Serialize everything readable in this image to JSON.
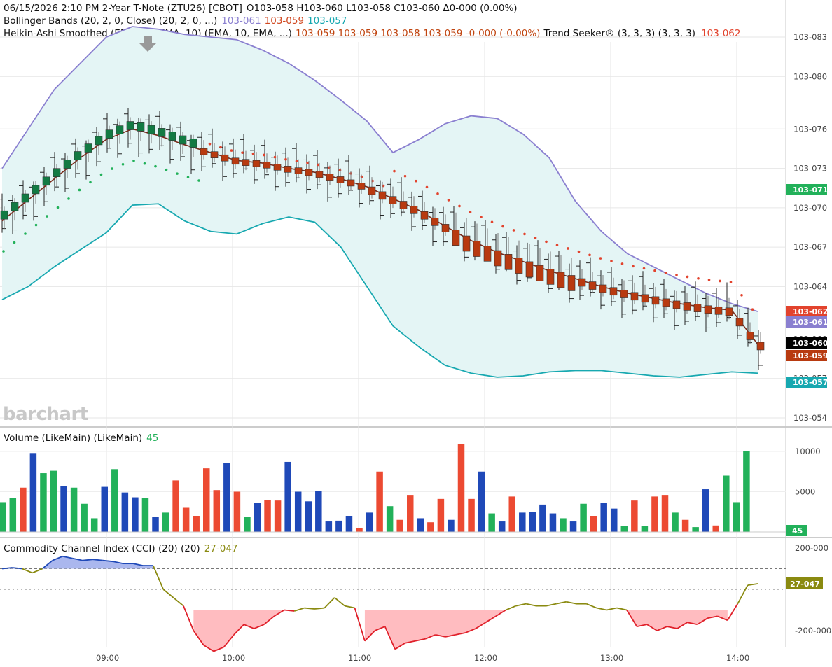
{
  "header": {
    "line1": "06/15/2026  2:10 PM 2-Year T-Note (ZTU26) [CBOT]",
    "ohlc": "O103-058 H103-060 L103-058 C103-060 Δ0-000 (0.00%)",
    "bb_label": "Bollinger Bands (20, 2, 0, Close)  (20, 2, 0, ...)",
    "bb_vals": [
      "103-061",
      "103-059",
      "103-057"
    ],
    "ha_label": "Heikin-Ashi Smoothed (EMA, 10, EMA, 10)  (EMA, 10, EMA, ...)",
    "ha_vals": "103-059 103-059 103-058 103-059 -0-000 (-0.00%)",
    "ts_label": "Trend Seeker® (3, 3, 3)  (3, 3, 3)",
    "ts_val": "103-062"
  },
  "colors": {
    "bb_upper": "#8a7fd0",
    "bb_middle": "#d04820",
    "bb_lower": "#17a8b0",
    "band_fill": "#e4f5f5",
    "ha_up": "#137a43",
    "ha_down": "#b83a10",
    "trend_up": "#22b15a",
    "trend_down": "#e2432d",
    "ema_line": "#7a2a1a",
    "vol_green": "#22b15a",
    "vol_red": "#ec4a32",
    "vol_blue": "#1f49b8",
    "cci_line_pos": "#1f49b8",
    "cci_line_mid": "#8a8a10",
    "cci_line_neg": "#e0202a",
    "cci_fill_pos": "#aab7ee",
    "cci_fill_neg": "#ffbcc0"
  },
  "price_axis": {
    "ticks": [
      "103-054",
      "103-057",
      "103-060",
      "103-064",
      "103-067",
      "103-070",
      "103-073",
      "103-076",
      "103-080",
      "103-083"
    ],
    "tags": [
      {
        "label": "103-071",
        "color": "#22b15a"
      },
      {
        "label": "103-062",
        "color": "#e2432d"
      },
      {
        "label": "103-061",
        "color": "#8a7fd0"
      },
      {
        "label": "103-060",
        "color": "#000000"
      },
      {
        "label": "103-059",
        "color": "#b83a10"
      },
      {
        "label": "103-057",
        "color": "#17a8b0"
      }
    ]
  },
  "time_axis": {
    "ticks": [
      "09:00",
      "10:00",
      "11:00",
      "12:00",
      "13:00",
      "14:00"
    ]
  },
  "volume": {
    "label": "Volume (LikeMain)  (LikeMain)",
    "value": "45",
    "ticks": [
      "10000",
      "5000"
    ],
    "tag": "45"
  },
  "cci": {
    "label": "Commodity Channel Index (CCI) (20)  (20)",
    "value": "27-047",
    "ticks": [
      "200-000",
      "-200-000"
    ],
    "tag": "27-047"
  },
  "logo": "barchart",
  "chart_data": [
    {
      "type": "line",
      "title": "2-Year T-Note (ZTU26) [CBOT]",
      "x_range": [
        "08:30",
        "14:10"
      ],
      "y_unit": "32nds above 103",
      "ylim": [
        0.4,
        3.1
      ],
      "y_tick_values": [
        0.54,
        0.57,
        0.6,
        0.64,
        0.67,
        0.7,
        0.73,
        0.76,
        0.8,
        0.83
      ],
      "series": [
        {
          "name": "Bollinger Upper",
          "values": [
            0.73,
            0.76,
            0.79,
            0.81,
            0.83,
            0.838,
            0.836,
            0.832,
            0.83,
            0.828,
            0.82,
            0.81,
            0.797,
            0.782,
            0.766,
            0.742,
            0.752,
            0.764,
            0.77,
            0.768,
            0.756,
            0.738,
            0.705,
            0.682,
            0.665,
            0.655,
            0.645,
            0.635,
            0.627,
            0.621
          ]
        },
        {
          "name": "Bollinger Lower",
          "values": [
            0.63,
            0.64,
            0.655,
            0.668,
            0.681,
            0.702,
            0.703,
            0.69,
            0.682,
            0.68,
            0.688,
            0.693,
            0.689,
            0.67,
            0.64,
            0.61,
            0.594,
            0.58,
            0.574,
            0.571,
            0.572,
            0.575,
            0.576,
            0.576,
            0.574,
            0.572,
            0.571,
            0.573,
            0.575,
            0.574
          ]
        },
        {
          "name": "Heikin-Ashi Close",
          "values": [
            0.69,
            0.706,
            0.722,
            0.738,
            0.752,
            0.76,
            0.755,
            0.748,
            0.742,
            0.736,
            0.734,
            0.73,
            0.727,
            0.722,
            0.716,
            0.707,
            0.698,
            0.686,
            0.675,
            0.666,
            0.659,
            0.652,
            0.646,
            0.64,
            0.635,
            0.631,
            0.627,
            0.624,
            0.622,
            0.596
          ]
        }
      ]
    },
    {
      "type": "bar",
      "title": "Volume (LikeMain)",
      "ylim": [
        0,
        11000
      ],
      "last_value": 45,
      "values": [
        3700,
        4200,
        5500,
        9800,
        7300,
        7600,
        5700,
        5500,
        3500,
        1700,
        5600,
        7800,
        4900,
        4300,
        4200,
        1900,
        2400,
        6400,
        3000,
        2000,
        7900,
        5200,
        8600,
        5000,
        1900,
        3600,
        4000,
        3900,
        8700,
        5000,
        3800,
        5100,
        1300,
        1400,
        2000,
        500,
        2400,
        7500,
        3200,
        1500,
        4600,
        1700,
        1200,
        4100,
        1500,
        10900,
        4100,
        7500,
        2300,
        1300,
        4400,
        2400,
        2500,
        3400,
        2300,
        1700,
        1300,
        3500,
        2000,
        3600,
        2900,
        700,
        3900,
        700,
        4400,
        4600,
        2400,
        1500,
        600,
        5300,
        800,
        7000,
        3700,
        10000,
        45
      ],
      "colors": [
        "g",
        "g",
        "r",
        "b",
        "g",
        "g",
        "b",
        "g",
        "g",
        "g",
        "b",
        "g",
        "b",
        "b",
        "g",
        "b",
        "g",
        "r",
        "r",
        "r",
        "r",
        "r",
        "b",
        "r",
        "g",
        "b",
        "r",
        "r",
        "b",
        "b",
        "b",
        "b",
        "b",
        "b",
        "b",
        "r",
        "b",
        "r",
        "g",
        "r",
        "r",
        "b",
        "r",
        "r",
        "b",
        "r",
        "r",
        "b",
        "g",
        "b",
        "r",
        "b",
        "b",
        "b",
        "b",
        "g",
        "b",
        "g",
        "r",
        "b",
        "b",
        "g",
        "r",
        "g",
        "r",
        "r",
        "g",
        "r",
        "g",
        "b",
        "r",
        "g",
        "g",
        "g",
        "g"
      ]
    },
    {
      "type": "line",
      "title": "Commodity Channel Index (CCI) (20)",
      "ylim": [
        -260,
        260
      ],
      "last_value": 27.047,
      "values": [
        100,
        105,
        100,
        80,
        100,
        140,
        160,
        150,
        140,
        145,
        140,
        135,
        125,
        125,
        115,
        115,
        0,
        -40,
        -80,
        -200,
        -270,
        -300,
        -280,
        -220,
        -170,
        -190,
        -170,
        -130,
        -100,
        -105,
        -90,
        -95,
        -90,
        -40,
        -80,
        -90,
        -250,
        -200,
        -180,
        -290,
        -260,
        -250,
        -240,
        -220,
        -230,
        -220,
        -210,
        -190,
        -160,
        -130,
        -100,
        -80,
        -70,
        -80,
        -80,
        -70,
        -60,
        -70,
        -70,
        -90,
        -100,
        -90,
        -100,
        -180,
        -170,
        -200,
        -180,
        -190,
        -160,
        -170,
        -140,
        -130,
        -150,
        -70,
        20,
        27
      ]
    }
  ]
}
